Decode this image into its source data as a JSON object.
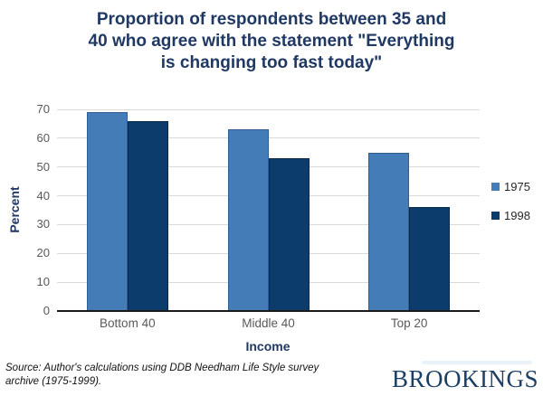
{
  "title": {
    "lines": [
      "Proportion of respondents between 35 and",
      "40 who agree with the statement \"Everything",
      "is changing too fast today\""
    ]
  },
  "chart_data": {
    "type": "bar",
    "categories": [
      "Bottom 40",
      "Middle 40",
      "Top 20"
    ],
    "series": [
      {
        "name": "1975",
        "color": "#447CB8",
        "border_color": "#2E5E93",
        "values": [
          69,
          63,
          55
        ]
      },
      {
        "name": "1998",
        "color": "#0C3C6C",
        "border_color": "#07294A",
        "values": [
          66,
          53,
          36
        ]
      }
    ],
    "xlabel": "Income",
    "ylabel": "Percent",
    "ylim": [
      0,
      70
    ],
    "ytick_step": 10,
    "grid": true,
    "legend_position": "right",
    "colors": {
      "title_navy": "#1F3864",
      "gridline": "#D9D9D9",
      "axis_line": "#1a1a1a",
      "tick_label": "#595959"
    }
  },
  "footer": {
    "source_lines": [
      "Source: Author's calculations using DDB Needham Life Style survey",
      "archive (1975-1999)."
    ],
    "brand": "BROOKINGS"
  }
}
